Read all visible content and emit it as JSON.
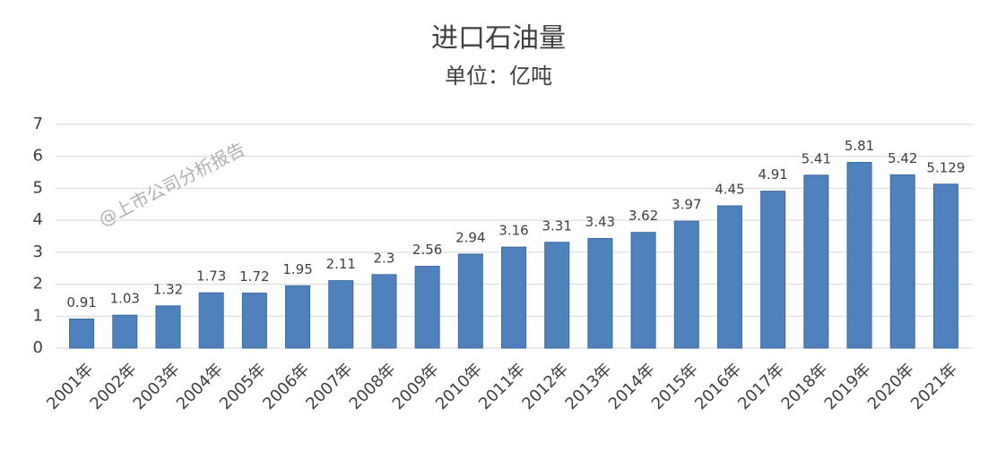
{
  "chart_data": {
    "type": "bar",
    "title": "进口石油量",
    "subtitle": "单位：亿吨",
    "watermark": "@上市公司分析报告",
    "categories": [
      "2001年",
      "2002年",
      "2003年",
      "2004年",
      "2005年",
      "2006年",
      "2007年",
      "2008年",
      "2009年",
      "2010年",
      "2011年",
      "2012年",
      "2013年",
      "2014年",
      "2015年",
      "2016年",
      "2017年",
      "2018年",
      "2019年",
      "2020年",
      "2021年"
    ],
    "values": [
      0.91,
      1.03,
      1.32,
      1.73,
      1.72,
      1.95,
      2.11,
      2.3,
      2.56,
      2.94,
      3.16,
      3.31,
      3.43,
      3.62,
      3.97,
      4.45,
      4.91,
      5.41,
      5.81,
      5.42,
      5.129
    ],
    "color": "#4f81bd",
    "ylim": [
      0,
      7
    ],
    "yticks": [
      0,
      1,
      2,
      3,
      4,
      5,
      6,
      7
    ],
    "grid": true
  }
}
